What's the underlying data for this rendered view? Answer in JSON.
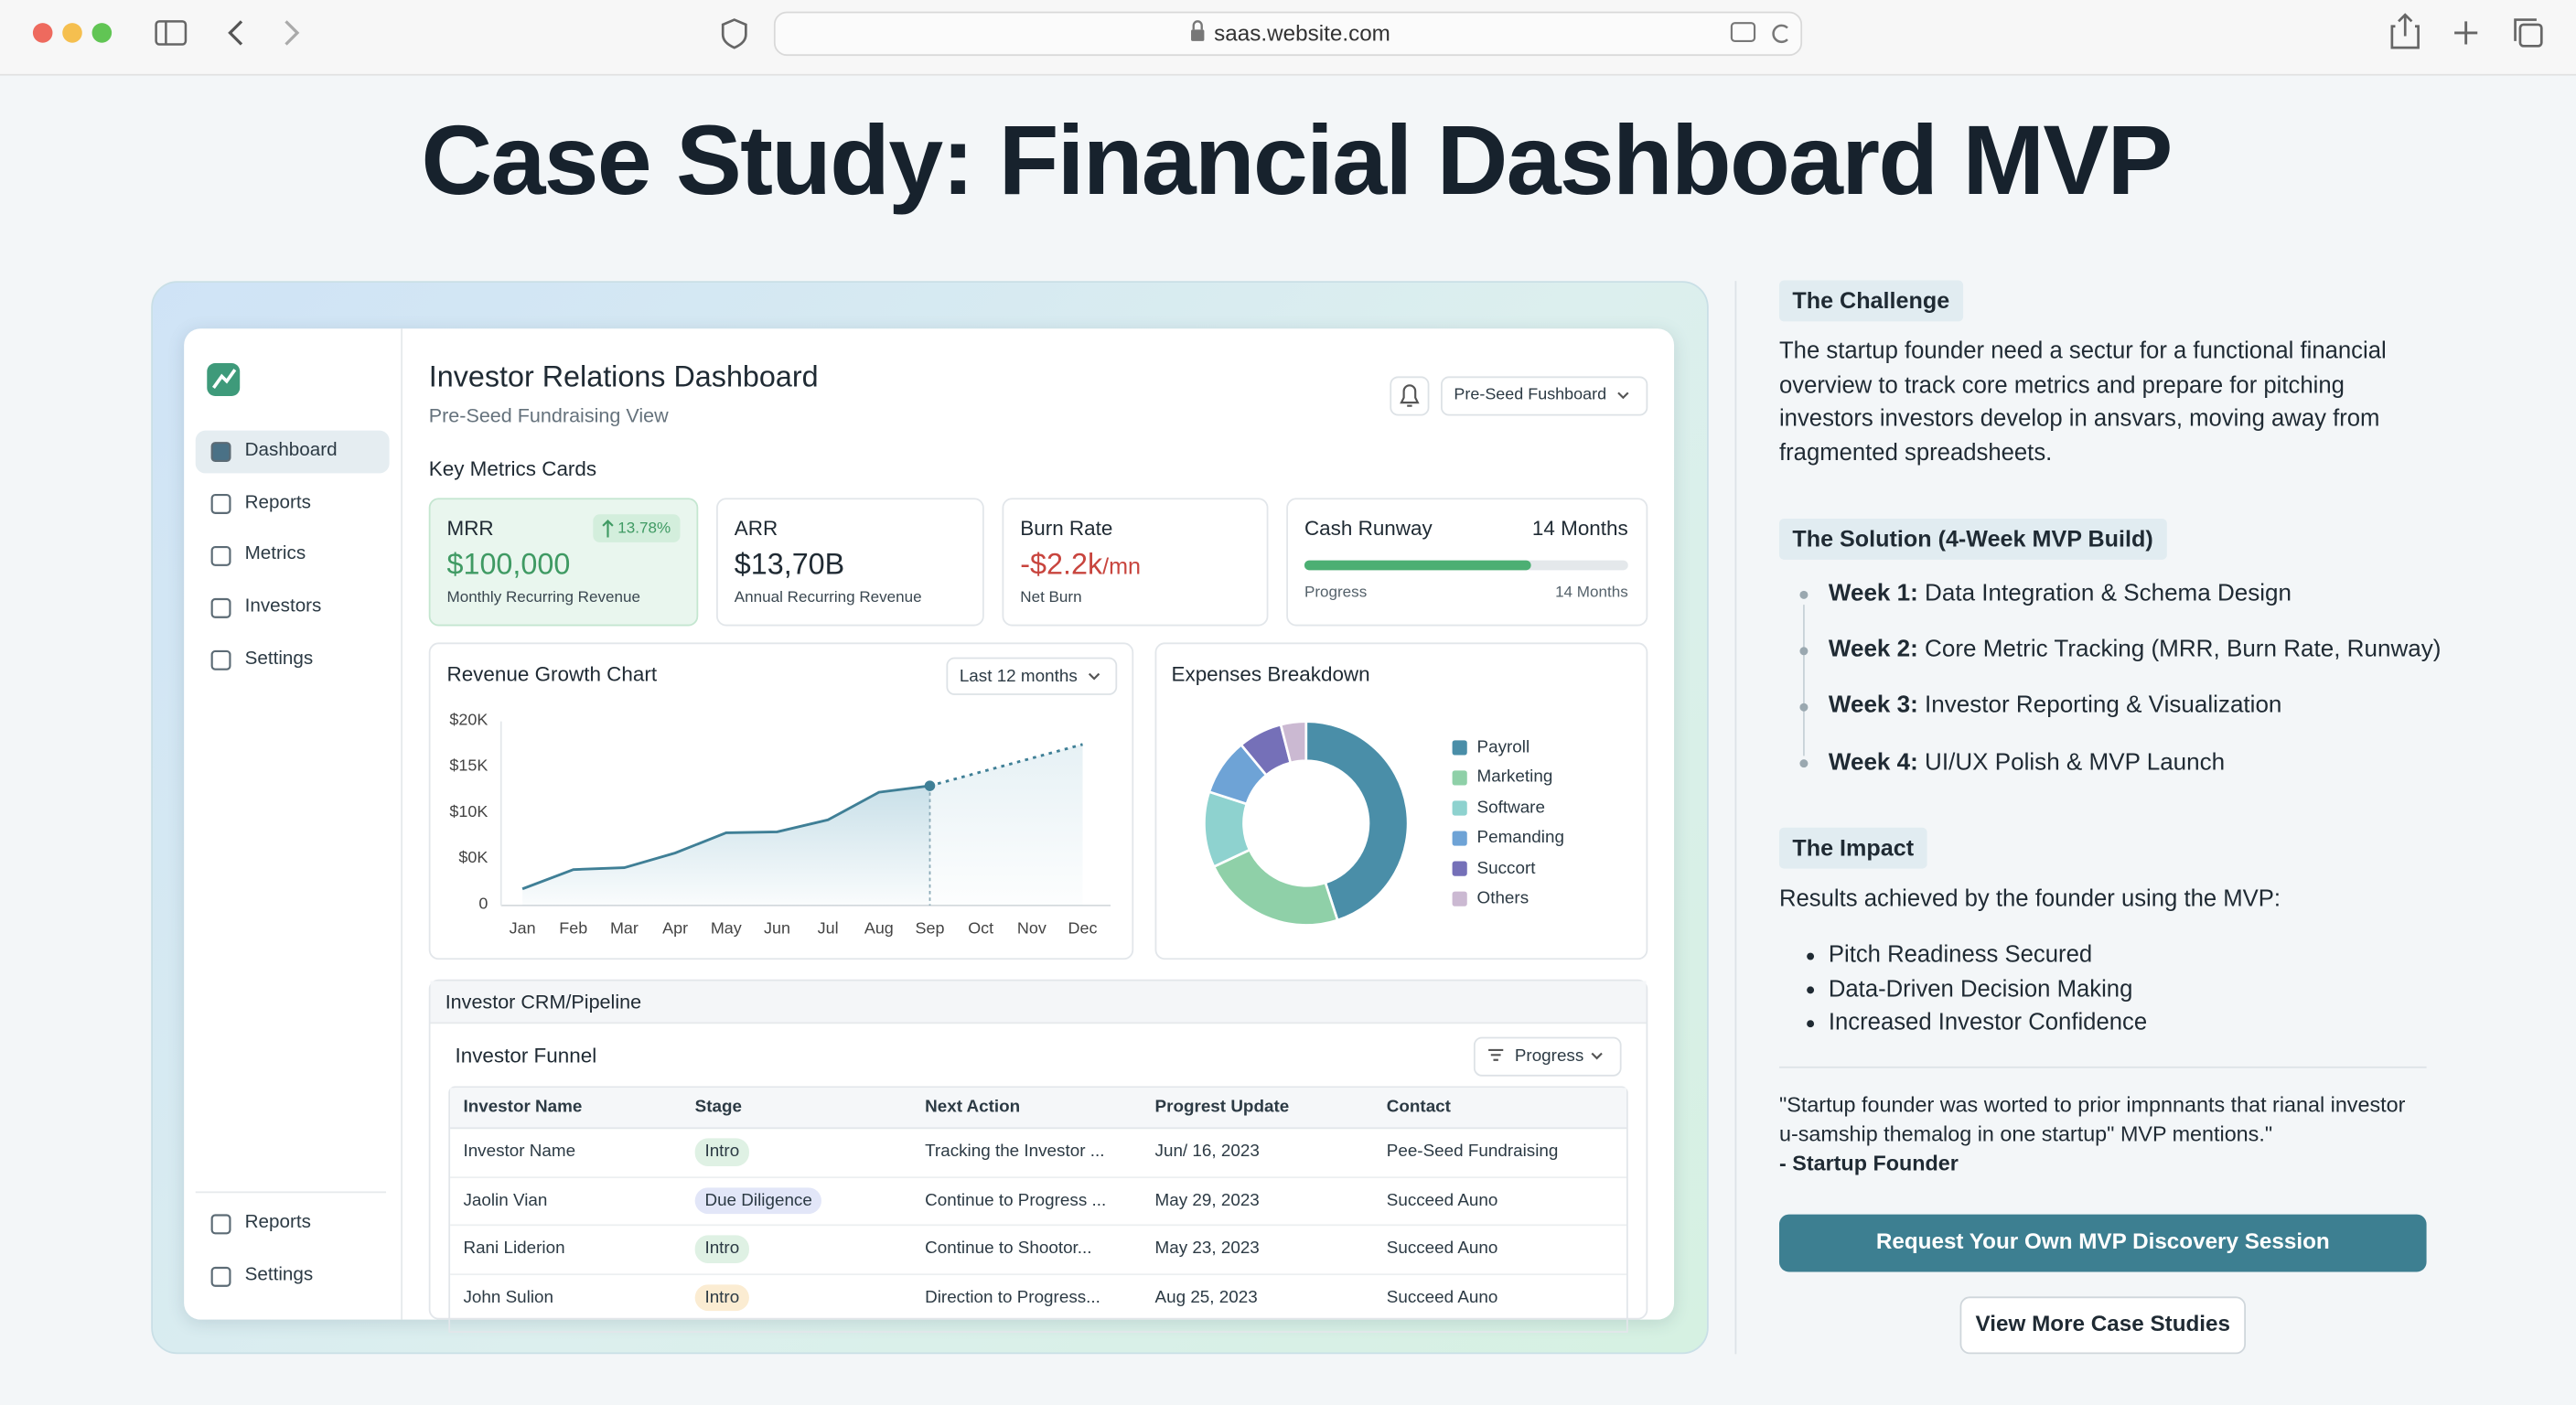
{
  "browser": {
    "url": "saas.website.com"
  },
  "title": "Case Study: Financial Dashboard MVP",
  "dashboard": {
    "nav": [
      "Dashboard",
      "Reports",
      "Metrics",
      "Investors",
      "Settings"
    ],
    "nav_bottom": [
      "Reports",
      "Settings"
    ],
    "heading": "Investor Relations Dashboard",
    "subheading": "Pre-Seed Fundraising View",
    "view_select": "Pre-Seed Fushboard",
    "metrics_heading": "Key Metrics Cards",
    "cards": [
      {
        "label": "MRR",
        "badge": "13.78%",
        "value": "$100,000",
        "caption": "Monthly Recurring Revenue",
        "color": "#3f9a63"
      },
      {
        "label": "ARR",
        "value": "$13,70B",
        "caption": "Annual Recurring Revenue",
        "color": "#1f2a33"
      },
      {
        "label": "Burn Rate",
        "value": "-$2.2k",
        "unit": "/mn",
        "caption": "Net Burn",
        "color": "#c8453e"
      }
    ],
    "runway": {
      "label": "Cash Runway",
      "value": "14 Months",
      "progress_label": "Progress",
      "progress_caption": "14 Months",
      "progress": 70
    },
    "revenue_chart": {
      "type": "line",
      "title": "Revenue Growth Chart",
      "range_select": "Last 12 months",
      "categories": [
        "Jan",
        "Feb",
        "Mar",
        "Apr",
        "May",
        "Jun",
        "Jul",
        "Aug",
        "Sep",
        "Oct",
        "Nov",
        "Dec"
      ],
      "values": [
        1800,
        3900,
        4100,
        5700,
        7900,
        8000,
        9300,
        12300,
        13000,
        14500,
        16000,
        17500
      ],
      "ylim": [
        0,
        20000
      ],
      "y_labels": [
        "$20K",
        "$15K",
        "$10K",
        "$0K",
        "0"
      ],
      "forecast_from": 8,
      "color": "#3f7f96"
    },
    "expenses_chart": {
      "type": "pie",
      "title": "Expenses Breakdown",
      "categories": [
        "Payroll",
        "Marketing",
        "Software",
        "Pemanding",
        "Succort",
        "Others"
      ],
      "values": [
        45,
        23,
        12,
        9,
        7,
        4
      ],
      "colors": [
        "#4a8ea8",
        "#8fd0a8",
        "#8ed2cf",
        "#6ea3d6",
        "#7570b8",
        "#cbb9d2"
      ]
    },
    "crm": {
      "title": "Investor CRM/Pipeline",
      "funnel_title": "Investor Funnel",
      "filter": "Progress",
      "columns": [
        "Investor Name",
        "Stage",
        "Next Action",
        "Progrest Update",
        "Contact"
      ],
      "rows": [
        [
          "Investor Name",
          "Intro",
          "Tracking the Investor ...",
          "Jun/ 16, 2023",
          "Pee-Seed Fundraising"
        ],
        [
          "Jaolin Vian",
          "Due Diligence",
          "Continue to Progress ...",
          "May 29, 2023",
          "Succeed Auno"
        ],
        [
          "Rani Liderion",
          "Intro",
          "Continue to Shootor...",
          "May 23, 2023",
          "Succeed Auno"
        ],
        [
          "John Sulion",
          "Intro",
          "Direction to Progress...",
          "Aug 25, 2023",
          "Succeed Auno"
        ]
      ],
      "stage_colors": [
        "#dff1e4",
        "#e2e6f8",
        "#dff1e4",
        "#fbecd2"
      ]
    }
  },
  "case_study": {
    "challenge": {
      "heading": "The Challenge",
      "text": "The startup founder need a sectur for a functional financial overview to track core metrics and prepare for pitching investors investors develop in ansvars, moving away from fragmented spreadsheets."
    },
    "solution": {
      "heading": "The Solution (4-Week MVP Build)",
      "weeks": [
        {
          "label": "Week 1:",
          "text": "Data Integration & Schema Design"
        },
        {
          "label": "Week 2:",
          "text": "Core Metric Tracking (MRR, Burn Rate, Runway)"
        },
        {
          "label": "Week 3:",
          "text": "Investor Reporting & Visualization"
        },
        {
          "label": "Week 4:",
          "text": "UI/UX Polish & MVP Launch"
        }
      ]
    },
    "impact": {
      "heading": "The Impact",
      "intro": "Results achieved by the founder using the MVP:",
      "items": [
        "Pitch Readiness Secured",
        "Data-Driven Decision Making",
        "Increased Investor Confidence"
      ]
    },
    "quote": {
      "text": "\"Startup founder was worted to prior impnnants that rianal investor u-samship themalog in one startup\" MVP mentions.\"",
      "author": "- Startup Founder"
    },
    "cta": "Request Your Own MVP Discovery Session",
    "secondary": "View More Case Studies"
  }
}
